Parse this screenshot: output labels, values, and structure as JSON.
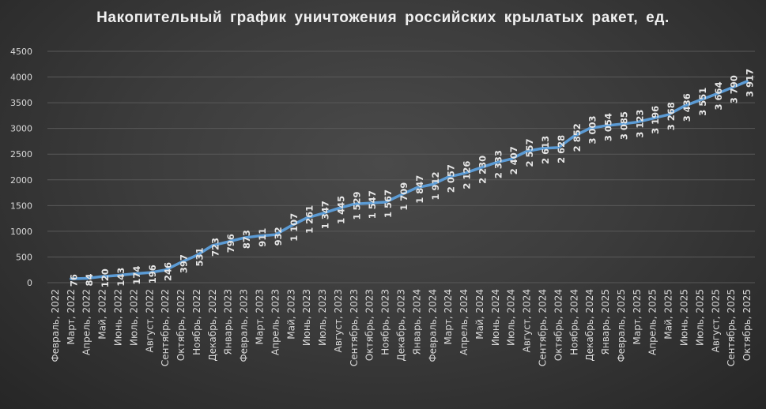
{
  "chart_data": {
    "type": "line",
    "title": "Накопительный график уничтожения российских крылатых ракет, ед.",
    "xlabel": "",
    "ylabel": "",
    "ylim": [
      0,
      4500
    ],
    "yticks": [
      0,
      500,
      1000,
      1500,
      2000,
      2500,
      3000,
      3500,
      4000,
      4500
    ],
    "grid": true,
    "legend": null,
    "categories": [
      "Февраль, 2022",
      "Март, 2022",
      "Апрель, 2022",
      "Май, 2022",
      "Июнь, 2022",
      "Июль, 2022",
      "Август, 2022",
      "Сентябрь, 2022",
      "Октябрь, 2022",
      "Ноябрь, 2022",
      "Декабрь, 2022",
      "Январь, 2023",
      "Февраль, 2023",
      "Март, 2023",
      "Апрель, 2023",
      "Май, 2023",
      "Июнь, 2023",
      "Июль, 2023",
      "Август, 2023",
      "Сентябрь, 2023",
      "Октябрь, 2023",
      "Ноябрь, 2023",
      "Декабрь, 2023",
      "Январь, 2024",
      "Февраль, 2024",
      "Март, 2024",
      "Апрель, 2024",
      "Май, 2024",
      "Июнь, 2024",
      "Июль, 2024",
      "Август, 2024",
      "Сентябрь, 2024",
      "Октябрь, 2024",
      "Ноябрь, 2024",
      "Декабрь, 2024",
      "Январь, 2025",
      "Февраль, 2025",
      "Март, 2025",
      "Апрель, 2025",
      "Май, 2025",
      "Июнь, 2025",
      "Июль, 2025",
      "Август, 2025",
      "Сентябрь, 2025",
      "Октябрь, 2025"
    ],
    "series": [
      {
        "name": "Накопительно",
        "color": "#5b9bd5",
        "values": [
          null,
          76,
          84,
          120,
          143,
          174,
          196,
          246,
          397,
          531,
          723,
          796,
          873,
          911,
          932,
          1107,
          1261,
          1347,
          1445,
          1529,
          1547,
          1567,
          1709,
          1847,
          1912,
          2057,
          2126,
          2230,
          2333,
          2407,
          2557,
          2613,
          2628,
          2852,
          3003,
          3054,
          3085,
          3123,
          3196,
          3268,
          3436,
          3551,
          3664,
          3790,
          3917
        ],
        "labels": [
          null,
          "76",
          "84",
          "120",
          "143",
          "174",
          "196",
          "246",
          "397",
          "531",
          "723",
          "796",
          "873",
          "911",
          "932",
          "1 107",
          "1 261",
          "1 347",
          "1 445",
          "1 529",
          "1 547",
          "1 567",
          "1 709",
          "1 847",
          "1 912",
          "2 057",
          "2 126",
          "2 230",
          "2 333",
          "2 407",
          "2 557",
          "2 613",
          "2 628",
          "2 852",
          "3 003",
          "3 054",
          "3 085",
          "3 123",
          "3 196",
          "3 268",
          "3 436",
          "3 551",
          "3 664",
          "3 790",
          "3 917"
        ]
      }
    ]
  }
}
